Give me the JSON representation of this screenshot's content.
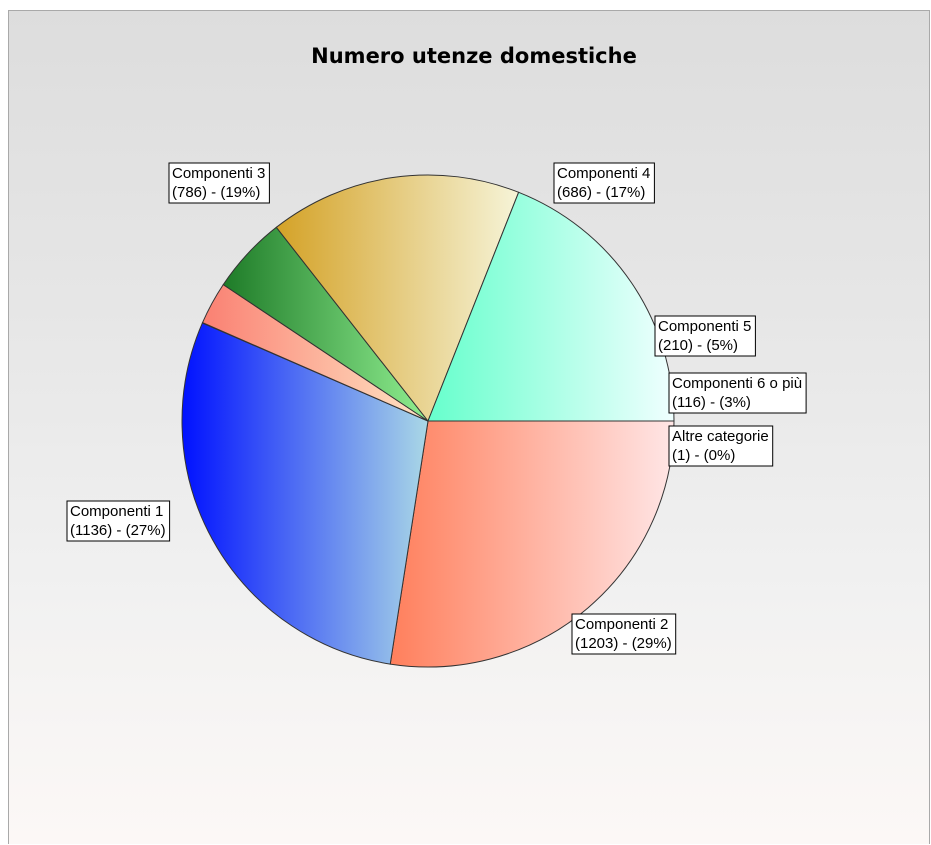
{
  "chart_data": {
    "type": "pie",
    "title": "Numero utenze domestiche",
    "slices": [
      {
        "label": "Componenti 1",
        "value": 1136,
        "percent": "27%",
        "colors": [
          "#ff7f5c",
          "#ffe6e6"
        ]
      },
      {
        "label": "Componenti 2",
        "value": 1203,
        "percent": "29%",
        "colors": [
          "#0011ff",
          "#aad8e6"
        ]
      },
      {
        "label": "Altre categorie",
        "value": 1,
        "percent": "0%",
        "colors": [
          "#ffe4e1",
          "#fff5ee"
        ]
      },
      {
        "label": "Componenti 6 o più",
        "value": 116,
        "percent": "3%",
        "colors": [
          "#fa8072",
          "#ffe4c4"
        ]
      },
      {
        "label": "Componenti 5",
        "value": 210,
        "percent": "5%",
        "colors": [
          "#1e7b28",
          "#90ee90"
        ]
      },
      {
        "label": "Componenti 4",
        "value": 686,
        "percent": "17%",
        "colors": [
          "#d4a227",
          "#f6f4d8"
        ]
      },
      {
        "label": "Componenti 3",
        "value": 786,
        "percent": "19%",
        "colors": [
          "#66ffcc",
          "#f0ffff"
        ]
      }
    ],
    "start_angle_deg": 0,
    "direction": "clockwise"
  }
}
